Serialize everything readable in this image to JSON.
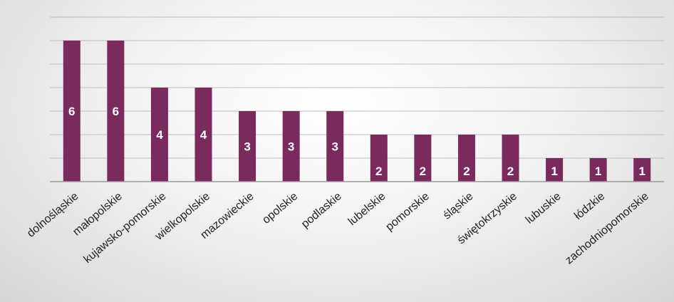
{
  "chart_data": {
    "type": "bar",
    "title": "",
    "xlabel": "",
    "ylabel": "",
    "ylim": [
      0,
      7
    ],
    "grid": true,
    "legend": "none",
    "bar_color": "#7b2a5e",
    "categories": [
      "dolnośląskie",
      "małopolskie",
      "kujawsko-pomorskie",
      "wielkopolskie",
      "mazowieckie",
      "opolskie",
      "podlaskie",
      "lubelskie",
      "pomorskie",
      "śląskie",
      "świętokrzyskie",
      "lubuskie",
      "łódzkie",
      "zachodniopomorskie"
    ],
    "values": [
      6,
      6,
      4,
      4,
      3,
      3,
      3,
      2,
      2,
      2,
      2,
      1,
      1,
      1
    ]
  }
}
